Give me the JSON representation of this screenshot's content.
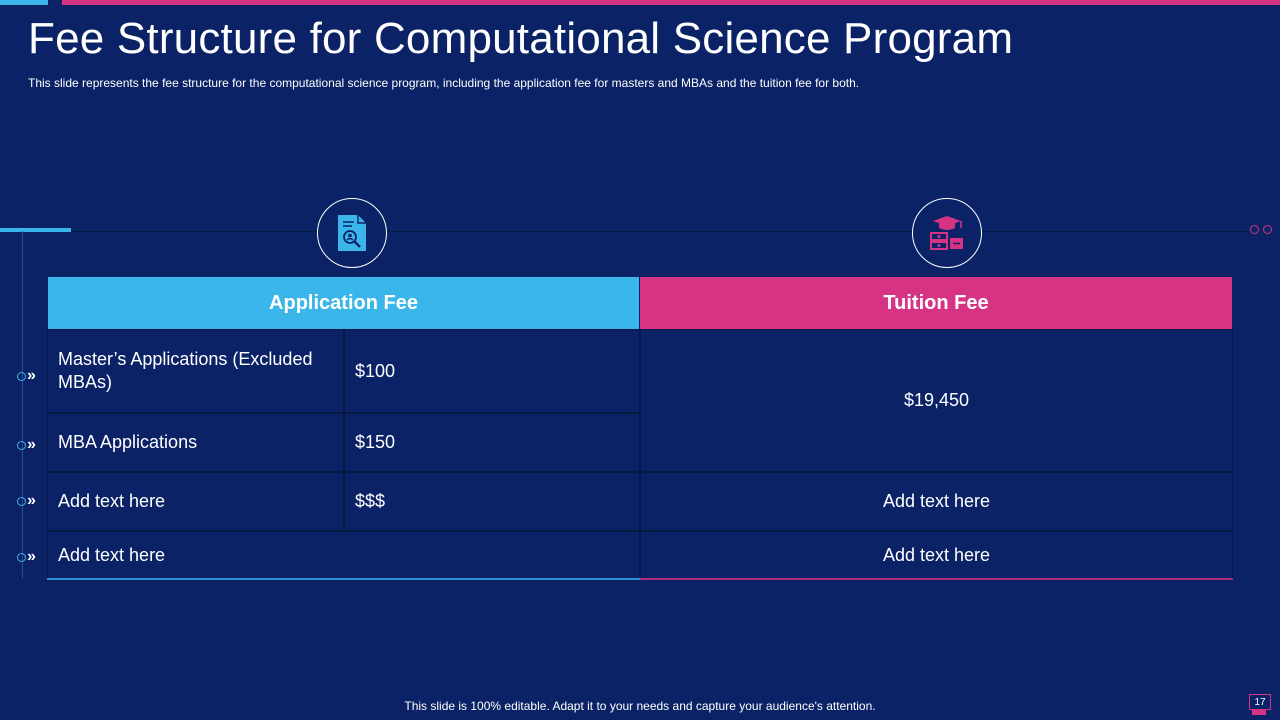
{
  "slide": {
    "title": "Fee Structure for Computational Science Program",
    "subtitle": "This slide represents the fee structure for the computational science program, including the application fee for masters and MBAs and the tuition fee for both.",
    "footer": "This slide is 100% editable. Adapt it to your needs and capture your audience's attention.",
    "page_number": "17"
  },
  "icons": {
    "application": "document-search-icon",
    "tuition": "graduation-money-icon"
  },
  "table": {
    "headers": {
      "application": "Application Fee",
      "tuition": "Tuition Fee"
    },
    "rows": [
      {
        "label": "Master’s Applications (Excluded MBAs)",
        "amount": "$100"
      },
      {
        "label": "MBA Applications",
        "amount": "$150"
      },
      {
        "label": "Add text here",
        "amount": "$$$",
        "tuition": "Add text here"
      },
      {
        "label": "Add text here",
        "tuition": "Add text here"
      }
    ],
    "tuition_merged": "$19,450"
  },
  "colors": {
    "background": "#0b2366",
    "accent_blue": "#3bb6ea",
    "accent_pink": "#d63384"
  }
}
